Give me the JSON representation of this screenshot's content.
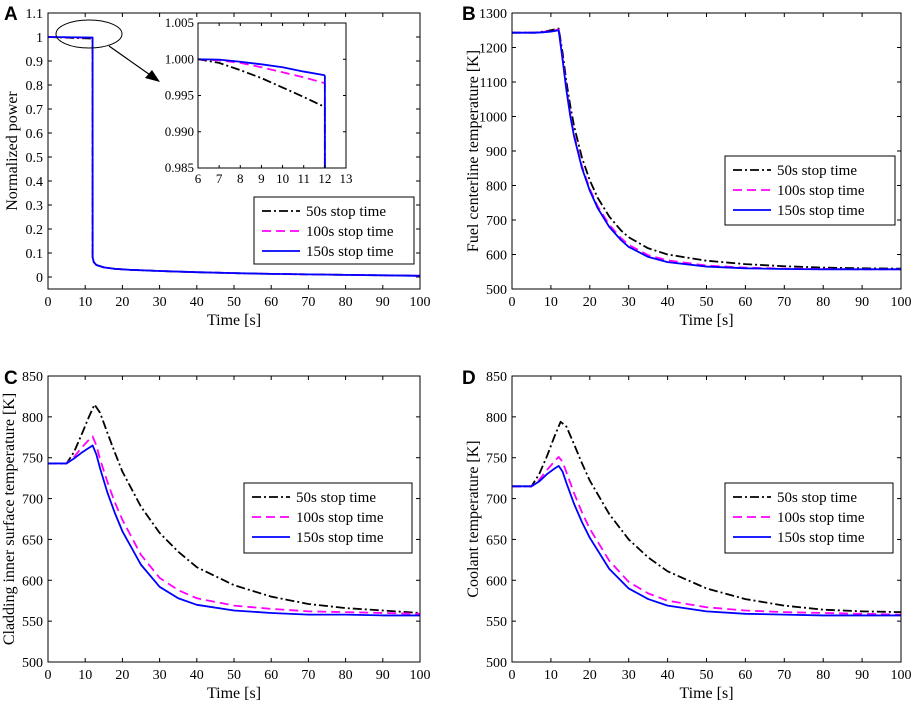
{
  "figure": {
    "series_styles": [
      {
        "name": "50s stop time",
        "color": "#000000",
        "dash": "dashdot"
      },
      {
        "name": "100s stop time",
        "color": "#ff00ff",
        "dash": "dash"
      },
      {
        "name": "150s stop time",
        "color": "#0000ff",
        "dash": "solid"
      }
    ]
  },
  "chart_data": [
    {
      "id": "A",
      "panel_label": "A",
      "type": "line",
      "xlabel": "Time [s]",
      "ylabel": "Normalized power",
      "xlim": [
        0,
        100
      ],
      "ylim": [
        -0.05,
        1.1
      ],
      "xticks": [
        0,
        10,
        20,
        30,
        40,
        50,
        60,
        70,
        80,
        90,
        100
      ],
      "yticks": [
        0,
        0.1,
        0.2,
        0.3,
        0.4,
        0.5,
        0.6,
        0.7,
        0.8,
        0.9,
        1
      ],
      "ytick_labels": [
        "0",
        "0.1",
        "0.2",
        "0.3",
        "0.4",
        "0.5",
        "0.6",
        "0.7",
        "0.8",
        "0.9",
        "1"
      ],
      "top_tick_label": "1.1",
      "legend": [
        "50s stop time",
        "100s stop time",
        "150s stop time"
      ],
      "legend_position": "center-right",
      "series": [
        {
          "name": "50s stop time",
          "x": [
            0,
            11.99,
            12.0,
            12.3,
            13,
            15,
            18,
            22,
            30,
            40,
            50,
            60,
            70,
            80,
            90,
            100
          ],
          "y": [
            1.0,
            0.9934,
            0.082,
            0.062,
            0.05,
            0.04,
            0.034,
            0.03,
            0.025,
            0.02,
            0.016,
            0.013,
            0.011,
            0.009,
            0.007,
            0.005
          ]
        },
        {
          "name": "100s stop time",
          "x": [
            0,
            11.99,
            12.0,
            12.3,
            13,
            15,
            18,
            22,
            30,
            40,
            50,
            60,
            70,
            80,
            90,
            100
          ],
          "y": [
            1.0,
            0.9967,
            0.082,
            0.062,
            0.05,
            0.04,
            0.034,
            0.03,
            0.025,
            0.02,
            0.016,
            0.013,
            0.011,
            0.009,
            0.007,
            0.005
          ]
        },
        {
          "name": "150s stop time",
          "x": [
            0,
            11.99,
            12.0,
            12.3,
            13,
            15,
            18,
            22,
            30,
            40,
            50,
            60,
            70,
            80,
            90,
            100
          ],
          "y": [
            1.0,
            0.9978,
            0.082,
            0.062,
            0.05,
            0.04,
            0.034,
            0.03,
            0.025,
            0.02,
            0.016,
            0.013,
            0.011,
            0.009,
            0.007,
            0.005
          ]
        }
      ],
      "inset": {
        "xlim": [
          6,
          13
        ],
        "ylim": [
          0.985,
          1.005
        ],
        "xticks": [
          6,
          7,
          8,
          9,
          10,
          11,
          12,
          13
        ],
        "yticks": [
          0.985,
          0.99,
          0.995,
          1.0,
          1.005
        ],
        "ytick_labels": [
          "0.985",
          "0.990",
          "0.995",
          "1.000",
          "1.005"
        ],
        "series": [
          {
            "name": "50s stop time",
            "x": [
              6,
              7,
              8,
              9,
              10,
              11,
              12
            ],
            "y": [
              1.0,
              0.9995,
              0.9985,
              0.9974,
              0.9961,
              0.9948,
              0.9934
            ]
          },
          {
            "name": "100s stop time",
            "x": [
              6,
              7,
              8,
              9,
              10,
              11,
              12
            ],
            "y": [
              1.0,
              0.99985,
              0.9995,
              0.9989,
              0.9982,
              0.9975,
              0.9967
            ]
          },
          {
            "name": "150s stop time",
            "x": [
              6,
              7,
              8,
              9,
              10,
              11,
              12
            ],
            "y": [
              1.0,
              0.99995,
              0.99965,
              0.9993,
              0.9989,
              0.9983,
              0.9978
            ]
          }
        ]
      }
    },
    {
      "id": "B",
      "panel_label": "B",
      "type": "line",
      "xlabel": "Time [s]",
      "ylabel": "Fuel centerline temperature [K]",
      "xlim": [
        0,
        100
      ],
      "ylim": [
        500,
        1300
      ],
      "xticks": [
        0,
        10,
        20,
        30,
        40,
        50,
        60,
        70,
        80,
        90,
        100
      ],
      "yticks": [
        500,
        600,
        700,
        800,
        900,
        1000,
        1100,
        1200,
        1300
      ],
      "legend": [
        "50s stop time",
        "100s stop time",
        "150s stop time"
      ],
      "legend_position": "center-right",
      "series": [
        {
          "name": "50s stop time",
          "x": [
            0,
            6,
            8,
            10,
            11.5,
            12,
            13,
            14,
            15,
            16,
            18,
            20,
            22,
            25,
            28,
            30,
            35,
            40,
            50,
            60,
            70,
            80,
            90,
            100
          ],
          "y": [
            1243,
            1243,
            1246,
            1250,
            1254,
            1255,
            1185,
            1100,
            1030,
            970,
            880,
            815,
            765,
            710,
            670,
            650,
            618,
            600,
            582,
            572,
            566,
            562,
            560,
            559
          ]
        },
        {
          "name": "100s stop time",
          "x": [
            0,
            6,
            8,
            10,
            11.5,
            12,
            13,
            14,
            15,
            16,
            18,
            20,
            22,
            25,
            28,
            30,
            35,
            40,
            50,
            60,
            70,
            80,
            90,
            100
          ],
          "y": [
            1243,
            1243,
            1245,
            1248,
            1251,
            1252,
            1170,
            1080,
            1005,
            945,
            855,
            790,
            740,
            686,
            648,
            628,
            598,
            583,
            568,
            562,
            559,
            558,
            557,
            557
          ]
        },
        {
          "name": "150s stop time",
          "x": [
            0,
            6,
            8,
            10,
            11.5,
            12,
            13,
            14,
            15,
            16,
            18,
            20,
            22,
            25,
            28,
            30,
            35,
            40,
            50,
            60,
            70,
            80,
            90,
            100
          ],
          "y": [
            1243,
            1243,
            1244,
            1246,
            1249,
            1250,
            1165,
            1075,
            1000,
            940,
            850,
            785,
            735,
            680,
            642,
            622,
            593,
            578,
            565,
            560,
            558,
            557,
            557,
            557
          ]
        }
      ]
    },
    {
      "id": "C",
      "panel_label": "C",
      "type": "line",
      "xlabel": "Time [s]",
      "ylabel": "Cladding inner surface temperature [K]",
      "xlim": [
        0,
        100
      ],
      "ylim": [
        500,
        850
      ],
      "xticks": [
        0,
        10,
        20,
        30,
        40,
        50,
        60,
        70,
        80,
        90,
        100
      ],
      "yticks": [
        500,
        550,
        600,
        650,
        700,
        750,
        800,
        850
      ],
      "legend": [
        "50s stop time",
        "100s stop time",
        "150s stop time"
      ],
      "legend_position": "center-right",
      "series": [
        {
          "name": "50s stop time",
          "x": [
            0,
            5,
            7,
            9,
            11,
            12.5,
            14,
            16,
            18,
            20,
            25,
            30,
            35,
            40,
            50,
            60,
            70,
            80,
            90,
            100
          ],
          "y": [
            743,
            743,
            757,
            778,
            800,
            815,
            805,
            780,
            756,
            733,
            690,
            658,
            635,
            616,
            594,
            580,
            571,
            566,
            563,
            560
          ]
        },
        {
          "name": "100s stop time",
          "x": [
            0,
            5,
            7,
            9,
            11,
            12,
            13,
            14,
            16,
            18,
            20,
            25,
            30,
            35,
            40,
            50,
            60,
            70,
            80,
            90,
            100
          ],
          "y": [
            743,
            743,
            751,
            762,
            772,
            776,
            765,
            748,
            720,
            695,
            674,
            631,
            603,
            588,
            578,
            569,
            565,
            562,
            561,
            560,
            559
          ]
        },
        {
          "name": "150s stop time",
          "x": [
            0,
            5,
            7,
            9,
            11,
            12,
            13,
            14,
            16,
            18,
            20,
            25,
            30,
            35,
            40,
            50,
            60,
            70,
            80,
            90,
            100
          ],
          "y": [
            743,
            743,
            749,
            756,
            762,
            765,
            754,
            737,
            707,
            682,
            660,
            619,
            592,
            578,
            570,
            563,
            560,
            558,
            558,
            557,
            557
          ]
        }
      ]
    },
    {
      "id": "D",
      "panel_label": "D",
      "type": "line",
      "xlabel": "Time [s]",
      "ylabel": "Coolant temperature [K]",
      "xlim": [
        0,
        100
      ],
      "ylim": [
        500,
        850
      ],
      "xticks": [
        0,
        10,
        20,
        30,
        40,
        50,
        60,
        70,
        80,
        90,
        100
      ],
      "yticks": [
        500,
        550,
        600,
        650,
        700,
        750,
        800,
        850
      ],
      "legend": [
        "50s stop time",
        "100s stop time",
        "150s stop time"
      ],
      "legend_position": "center-right",
      "series": [
        {
          "name": "50s stop time",
          "x": [
            0,
            5,
            7,
            9,
            11,
            12.5,
            14,
            16,
            18,
            20,
            25,
            30,
            35,
            40,
            50,
            60,
            70,
            80,
            90,
            100
          ],
          "y": [
            715,
            715,
            730,
            752,
            777,
            794,
            788,
            766,
            743,
            722,
            681,
            650,
            628,
            611,
            590,
            577,
            569,
            564,
            562,
            561
          ]
        },
        {
          "name": "100s stop time",
          "x": [
            0,
            5,
            7,
            9,
            11,
            12,
            13,
            14,
            16,
            18,
            20,
            25,
            30,
            35,
            40,
            50,
            60,
            70,
            80,
            90,
            100
          ],
          "y": [
            715,
            715,
            723,
            735,
            746,
            751,
            745,
            732,
            706,
            683,
            663,
            624,
            598,
            584,
            575,
            567,
            563,
            561,
            560,
            559,
            558
          ]
        },
        {
          "name": "150s stop time",
          "x": [
            0,
            5,
            7,
            9,
            11,
            12,
            13,
            14,
            16,
            18,
            20,
            25,
            30,
            35,
            40,
            50,
            60,
            70,
            80,
            90,
            100
          ],
          "y": [
            715,
            715,
            721,
            730,
            737,
            740,
            733,
            719,
            693,
            671,
            652,
            614,
            590,
            577,
            569,
            562,
            559,
            558,
            557,
            557,
            557
          ]
        }
      ]
    }
  ]
}
